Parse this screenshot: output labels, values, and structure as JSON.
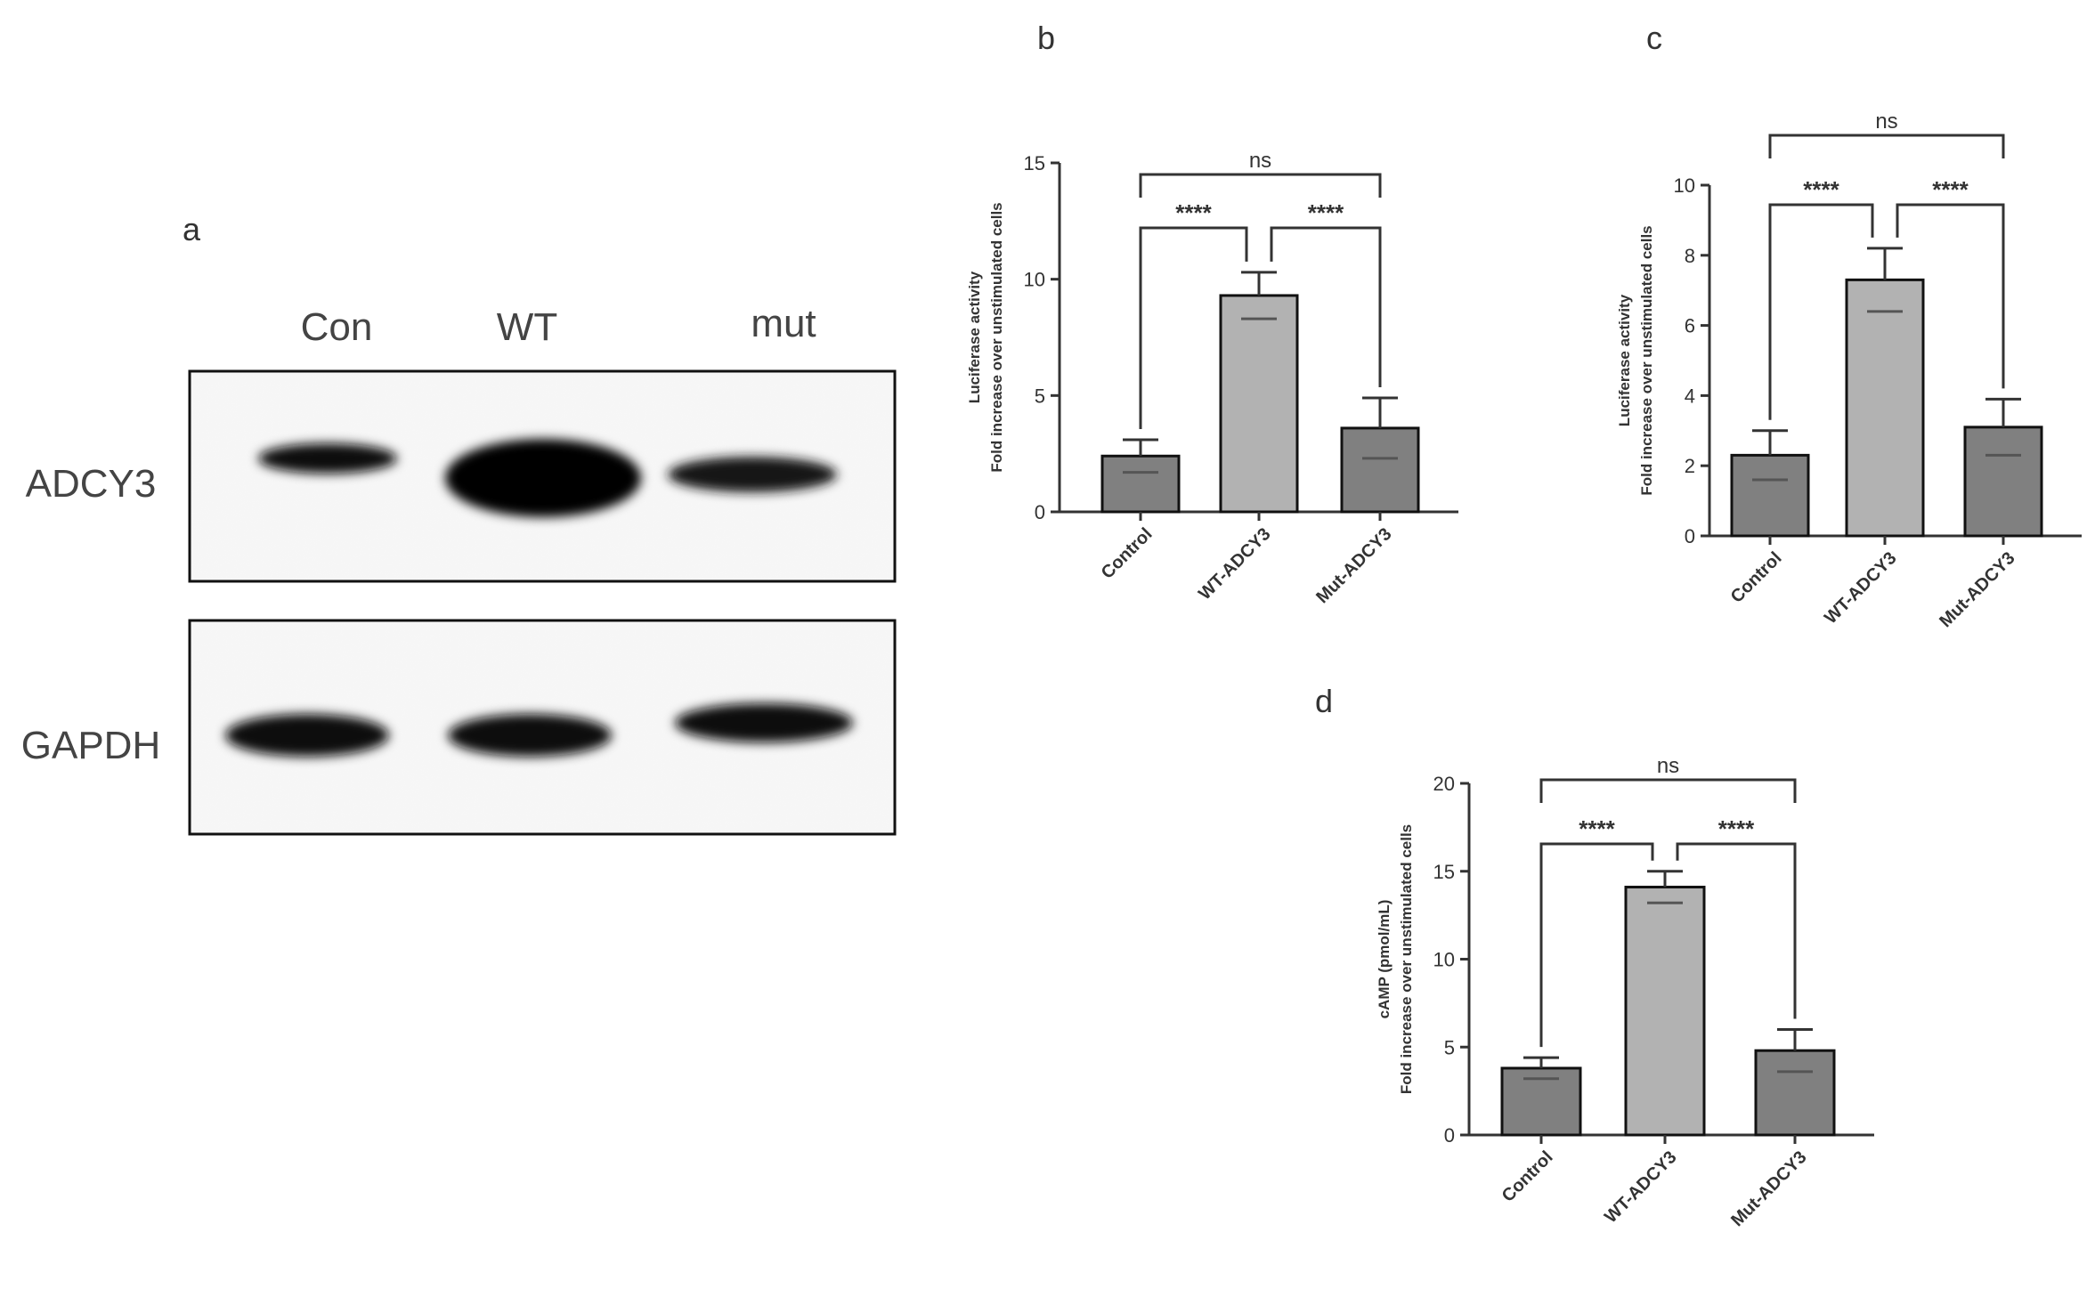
{
  "western_blot": {
    "panel": "a",
    "lanes": [
      "Con",
      "WT",
      "mut"
    ],
    "rows": [
      "ADCY3",
      "GAPDH"
    ],
    "band_intensity": {
      "ADCY3": [
        0.45,
        1.0,
        0.5
      ],
      "GAPDH": [
        0.85,
        0.8,
        0.85
      ]
    }
  },
  "chart_data": [
    {
      "panel": "b",
      "type": "bar",
      "categories": [
        "Control",
        "WT-ADCY3",
        "Mut-ADCY3"
      ],
      "values": [
        2.4,
        9.3,
        3.6
      ],
      "error": [
        0.7,
        1.0,
        1.3
      ],
      "ylabel_lines": [
        "Fold increase over unstimulated cells",
        "Luciferase activity"
      ],
      "ylim": [
        0,
        15
      ],
      "yticks": [
        0,
        5,
        10,
        15
      ],
      "bar_colors": [
        "#808080",
        "#b2b2b2",
        "#808080"
      ],
      "significance": [
        {
          "from": 0,
          "to": 1,
          "label": "****"
        },
        {
          "from": 1,
          "to": 2,
          "label": "****"
        },
        {
          "from": 0,
          "to": 2,
          "label": "ns"
        }
      ]
    },
    {
      "panel": "c",
      "type": "bar",
      "categories": [
        "Control",
        "WT-ADCY3",
        "Mut-ADCY3"
      ],
      "values": [
        2.3,
        7.3,
        3.1
      ],
      "error": [
        0.7,
        0.9,
        0.8
      ],
      "ylabel_lines": [
        "Fold increase over unstimulated cells",
        "Luciferase activity"
      ],
      "ylim": [
        0,
        10
      ],
      "yticks": [
        0,
        2,
        4,
        6,
        8,
        10
      ],
      "bar_colors": [
        "#808080",
        "#b2b2b2",
        "#808080"
      ],
      "significance": [
        {
          "from": 0,
          "to": 1,
          "label": "****"
        },
        {
          "from": 1,
          "to": 2,
          "label": "****"
        },
        {
          "from": 0,
          "to": 2,
          "label": "ns"
        }
      ]
    },
    {
      "panel": "d",
      "type": "bar",
      "categories": [
        "Control",
        "WT-ADCY3",
        "Mut-ADCY3"
      ],
      "values": [
        3.8,
        14.1,
        4.8
      ],
      "error": [
        0.6,
        0.9,
        1.2
      ],
      "ylabel_lines": [
        "Fold increase over unstimulated cells",
        "cAMP (pmol/mL)"
      ],
      "ylim": [
        0,
        20
      ],
      "yticks": [
        0,
        5,
        10,
        15,
        20
      ],
      "bar_colors": [
        "#808080",
        "#b2b2b2",
        "#808080"
      ],
      "significance": [
        {
          "from": 0,
          "to": 1,
          "label": "****"
        },
        {
          "from": 1,
          "to": 2,
          "label": "****"
        },
        {
          "from": 0,
          "to": 2,
          "label": "ns"
        }
      ]
    }
  ]
}
